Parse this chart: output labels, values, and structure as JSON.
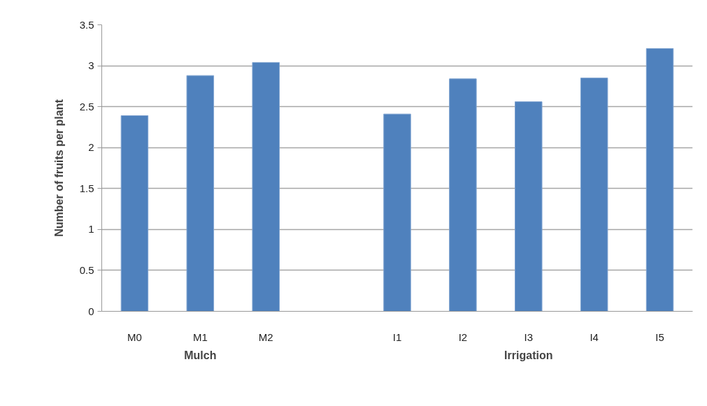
{
  "chart_data": {
    "type": "bar",
    "ylabel": "Number of fruits per plant",
    "categories": [
      "M0",
      "M1",
      "M2",
      null,
      "I1",
      "I2",
      "I3",
      "I4",
      "I5"
    ],
    "values": [
      2.39,
      2.88,
      3.04,
      null,
      2.41,
      2.84,
      2.56,
      2.85,
      3.21
    ],
    "color": "#4f81bd",
    "ylim": [
      0,
      3.5
    ],
    "yticks": [
      0,
      0.5,
      1,
      1.5,
      2,
      2.5,
      3,
      3.5
    ],
    "grid": "y",
    "annotations": [
      "Mulch",
      "Irrigation"
    ]
  }
}
